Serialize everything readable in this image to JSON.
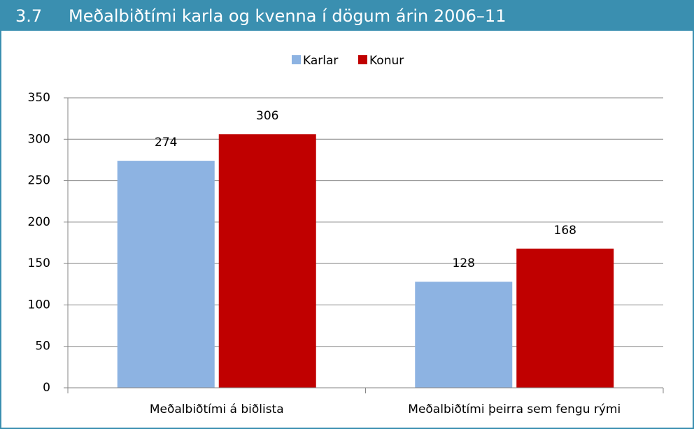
{
  "figure_number": "3.7",
  "chart_data": {
    "type": "bar",
    "title": "Meðalbiðtími karla og kvenna í dögum árin 2006–11",
    "categories": [
      "Meðalbiðtími á biðlista",
      "Meðalbiðtími þeirra sem fengu rými"
    ],
    "series": [
      {
        "name": "Karlar",
        "color": "#8db3e2",
        "values": [
          274,
          128
        ]
      },
      {
        "name": "Konur",
        "color": "#c00000",
        "values": [
          306,
          168
        ]
      }
    ],
    "ylim": [
      0,
      350
    ],
    "yticks": [
      0,
      50,
      100,
      150,
      200,
      250,
      300,
      350
    ],
    "grid": true,
    "legend": "top"
  }
}
